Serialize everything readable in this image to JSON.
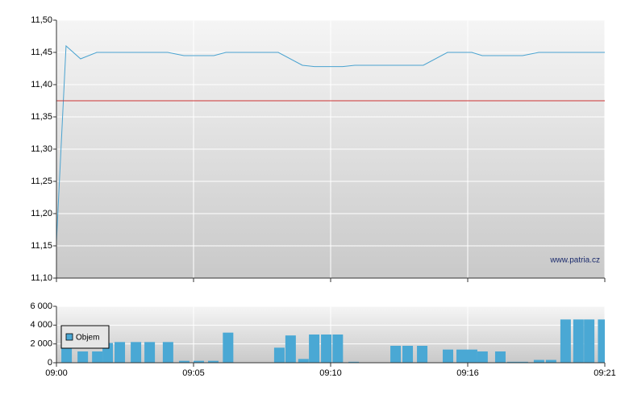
{
  "chart_data": [
    {
      "type": "line",
      "xlim": [
        0,
        20
      ],
      "x": [
        0,
        0.35,
        0.88,
        1.47,
        4.06,
        4.65,
        5.74,
        6.18,
        8.09,
        8.97,
        9.41,
        10.44,
        10.88,
        13.38,
        14.26,
        15.15,
        15.53,
        17.0,
        17.59,
        20
      ],
      "series": [
        {
          "color": "#4aa3d0",
          "values": [
            11.156,
            11.46,
            11.44,
            11.45,
            11.45,
            11.445,
            11.445,
            11.45,
            11.45,
            11.43,
            11.428,
            11.428,
            11.43,
            11.43,
            11.45,
            11.45,
            11.445,
            11.445,
            11.45,
            11.45
          ]
        }
      ],
      "reference_line": {
        "value": 11.375,
        "color": "#cc3333"
      },
      "ylim": [
        11.1,
        11.5
      ],
      "yticks": [
        {
          "value": 11.1,
          "label": "11,10"
        },
        {
          "value": 11.15,
          "label": "11,15"
        },
        {
          "value": 11.2,
          "label": "11,20"
        },
        {
          "value": 11.25,
          "label": "11,25"
        },
        {
          "value": 11.3,
          "label": "11,30"
        },
        {
          "value": 11.35,
          "label": "11,35"
        },
        {
          "value": 11.4,
          "label": "11,40"
        },
        {
          "value": 11.45,
          "label": "11,45"
        },
        {
          "value": 11.5,
          "label": "11,50"
        }
      ],
      "grid": true,
      "watermark": "www.patria.cz"
    },
    {
      "type": "bar",
      "xlim": [
        0,
        20
      ],
      "xticks": [
        {
          "value": 0,
          "label": "09:00"
        },
        {
          "value": 5,
          "label": "09:05"
        },
        {
          "value": 10,
          "label": "09:10"
        },
        {
          "value": 15,
          "label": "09:16"
        },
        {
          "value": 20,
          "label": "09:21"
        }
      ],
      "x": [
        0.37,
        0.96,
        1.49,
        1.87,
        2.31,
        2.9,
        3.4,
        4.07,
        4.66,
        5.19,
        5.72,
        6.26,
        8.13,
        8.54,
        9.01,
        9.4,
        9.84,
        10.26,
        10.84,
        12.37,
        12.81,
        13.34,
        14.28,
        14.78,
        15.16,
        15.54,
        16.19,
        16.63,
        17.01,
        17.6,
        18.04,
        18.57,
        19.04,
        19.43,
        19.94
      ],
      "series": [
        {
          "name": "Objem",
          "color": "#4aa8d4",
          "values": [
            2000,
            1200,
            1200,
            2100,
            2200,
            2200,
            2200,
            2200,
            200,
            200,
            200,
            3200,
            1600,
            2900,
            400,
            3000,
            3000,
            3000,
            100,
            1800,
            1800,
            1800,
            1400,
            1400,
            1400,
            1200,
            1200,
            100,
            100,
            300,
            300,
            4600,
            4600,
            4600,
            4600
          ]
        }
      ],
      "ylim": [
        0,
        6000
      ],
      "yticks": [
        0,
        {
          "value": 2000,
          "label": "2 000"
        },
        {
          "value": 4000,
          "label": "4 000"
        },
        {
          "value": 6000,
          "label": "6 000"
        }
      ],
      "grid": true,
      "legend": "top-left"
    }
  ]
}
